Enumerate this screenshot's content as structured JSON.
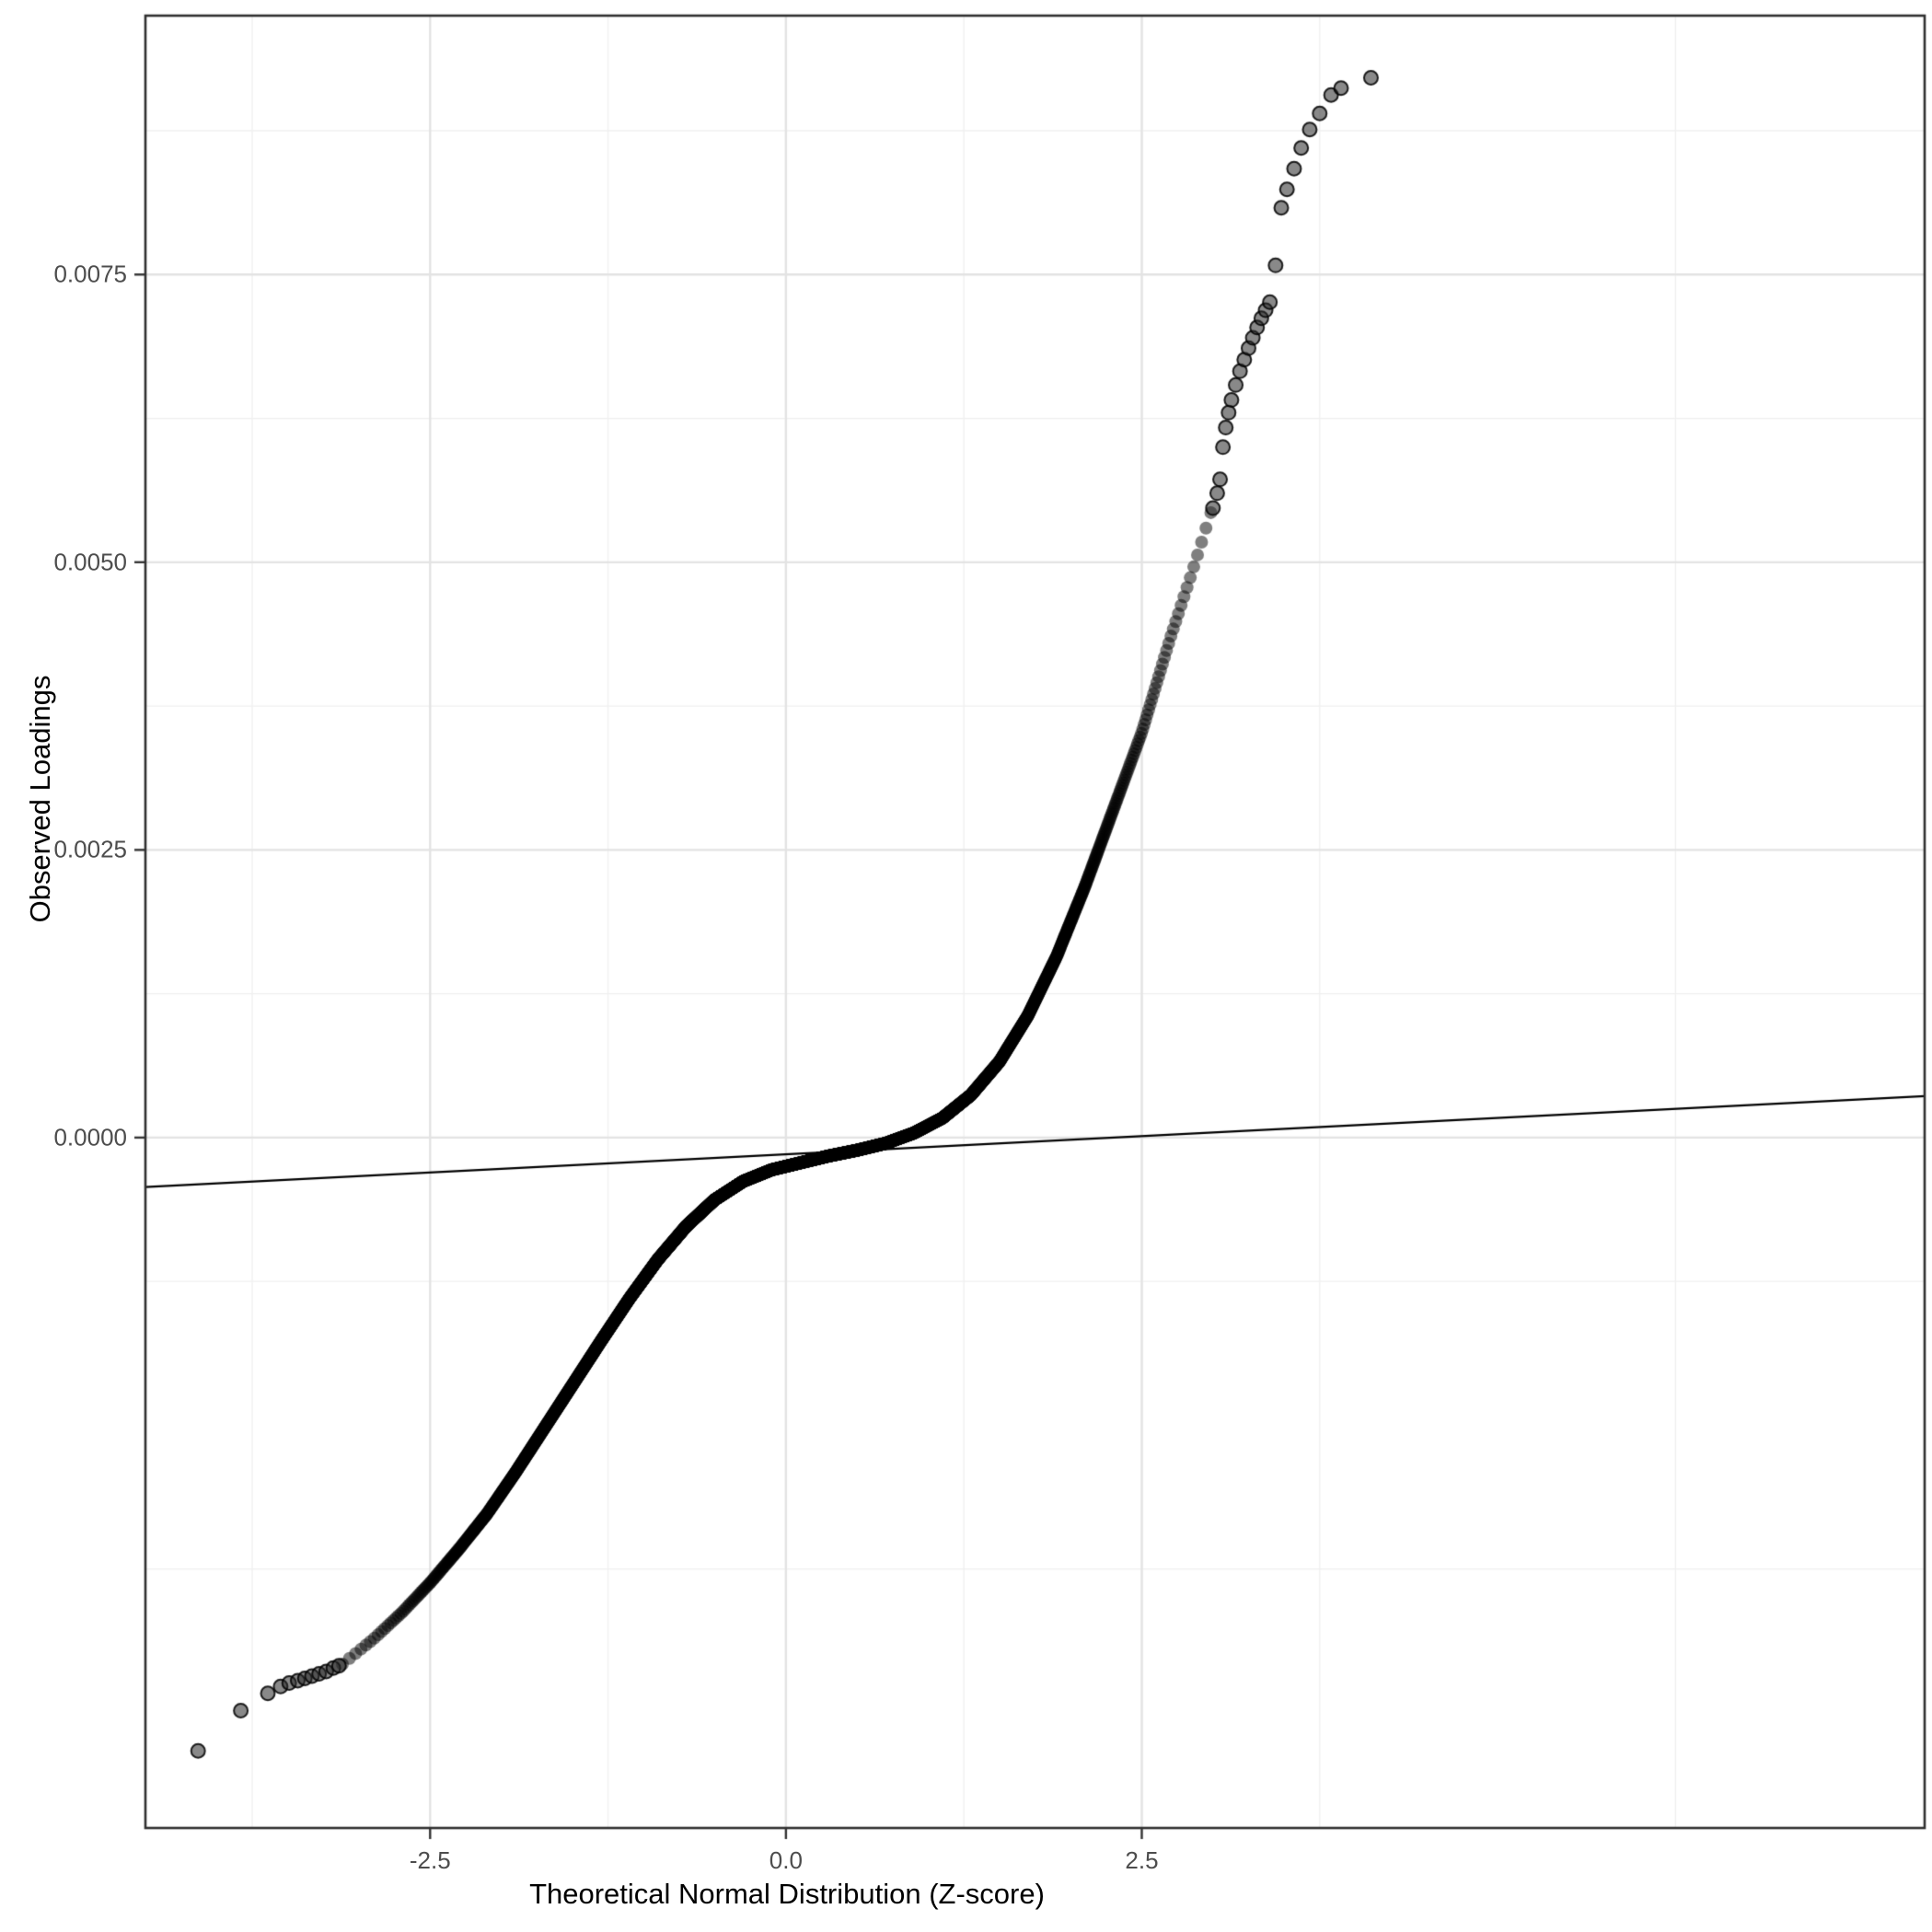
{
  "chart_data": {
    "type": "scatter",
    "title": "",
    "xlabel": "Theoretical Normal Distribution (Z-score)",
    "ylabel": "Observed Loadings",
    "xlim": [
      -4.5,
      8.0
    ],
    "ylim": [
      -0.006,
      0.00975
    ],
    "grid": true,
    "legend": "none",
    "x_ticks": [
      -2.5,
      0.0,
      2.5
    ],
    "x_tick_labels": [
      "-2.5",
      "0.0",
      "2.5"
    ],
    "y_ticks": [
      0.0,
      0.0025,
      0.005,
      0.0075
    ],
    "y_tick_labels": [
      "0.0000",
      "0.0025",
      "0.0050",
      "0.0075"
    ],
    "n_points": 6000,
    "band_z_range": [
      -3.12,
      2.99
    ],
    "curve_anchors": [
      [
        -3.12,
        -0.00458
      ],
      [
        -2.9,
        -0.00436
      ],
      [
        -2.7,
        -0.00413
      ],
      [
        -2.5,
        -0.00387
      ],
      [
        -2.3,
        -0.00358
      ],
      [
        -2.1,
        -0.00327
      ],
      [
        -1.9,
        -0.00291
      ],
      [
        -1.7,
        -0.00253
      ],
      [
        -1.5,
        -0.00215
      ],
      [
        -1.3,
        -0.00177
      ],
      [
        -1.1,
        -0.0014
      ],
      [
        -0.9,
        -0.00106
      ],
      [
        -0.7,
        -0.00077
      ],
      [
        -0.5,
        -0.00054
      ],
      [
        -0.3,
        -0.00038
      ],
      [
        -0.1,
        -0.00028
      ],
      [
        0.1,
        -0.00022
      ],
      [
        0.3,
        -0.00016
      ],
      [
        0.5,
        -0.00011
      ],
      [
        0.7,
        -5e-05
      ],
      [
        0.9,
        4e-05
      ],
      [
        1.1,
        0.00017
      ],
      [
        1.3,
        0.00037
      ],
      [
        1.5,
        0.00066
      ],
      [
        1.7,
        0.00106
      ],
      [
        1.9,
        0.00157
      ],
      [
        2.1,
        0.00218
      ],
      [
        2.3,
        0.00285
      ],
      [
        2.5,
        0.00352
      ],
      [
        2.7,
        0.00434
      ],
      [
        2.85,
        0.0049
      ],
      [
        2.99,
        0.00545
      ]
    ],
    "left_tail_points": [
      [
        -4.13,
        -0.00533
      ],
      [
        -3.83,
        -0.00498
      ],
      [
        -3.64,
        -0.00483
      ],
      [
        -3.55,
        -0.00477
      ],
      [
        -3.49,
        -0.00474
      ],
      [
        -3.43,
        -0.00472
      ],
      [
        -3.38,
        -0.0047
      ],
      [
        -3.33,
        -0.00468
      ],
      [
        -3.28,
        -0.00466
      ],
      [
        -3.23,
        -0.00464
      ],
      [
        -3.18,
        -0.00461
      ],
      [
        -3.14,
        -0.00459
      ]
    ],
    "right_tail_points": [
      [
        3.0,
        0.00547
      ],
      [
        3.03,
        0.0056
      ],
      [
        3.05,
        0.00572
      ],
      [
        3.07,
        0.006
      ],
      [
        3.09,
        0.00617
      ],
      [
        3.11,
        0.0063
      ],
      [
        3.13,
        0.00641
      ],
      [
        3.16,
        0.00654
      ],
      [
        3.19,
        0.00666
      ],
      [
        3.22,
        0.00676
      ],
      [
        3.25,
        0.00686
      ],
      [
        3.28,
        0.00695
      ],
      [
        3.31,
        0.00704
      ],
      [
        3.34,
        0.00712
      ],
      [
        3.37,
        0.00719
      ],
      [
        3.4,
        0.00726
      ],
      [
        3.44,
        0.00758
      ],
      [
        3.48,
        0.00808
      ],
      [
        3.52,
        0.00824
      ],
      [
        3.57,
        0.00842
      ],
      [
        3.62,
        0.0086
      ],
      [
        3.68,
        0.00876
      ],
      [
        3.75,
        0.0089
      ],
      [
        3.83,
        0.00906
      ],
      [
        3.9,
        0.00912
      ],
      [
        4.11,
        0.00921
      ]
    ],
    "reference_line": {
      "slope_per_z": 6.32e-05,
      "intercept": -0.000146,
      "x": [
        -4.5,
        8.0
      ],
      "y": [
        -0.00043,
        0.00036
      ]
    },
    "colors": {
      "background": "#ffffff",
      "panel_background": "#ffffff",
      "grid_major": "#e3e3e3",
      "grid_minor": "#f0f0f0",
      "panel_border": "#2f2f2f",
      "point": "#000000",
      "point_alpha": 0.5,
      "tail_point_fill": "#282828",
      "tail_point_stroke": "#000000",
      "reference_line": "#000000",
      "tick_text": "#4d4d4d",
      "title_text": "#000000"
    }
  }
}
